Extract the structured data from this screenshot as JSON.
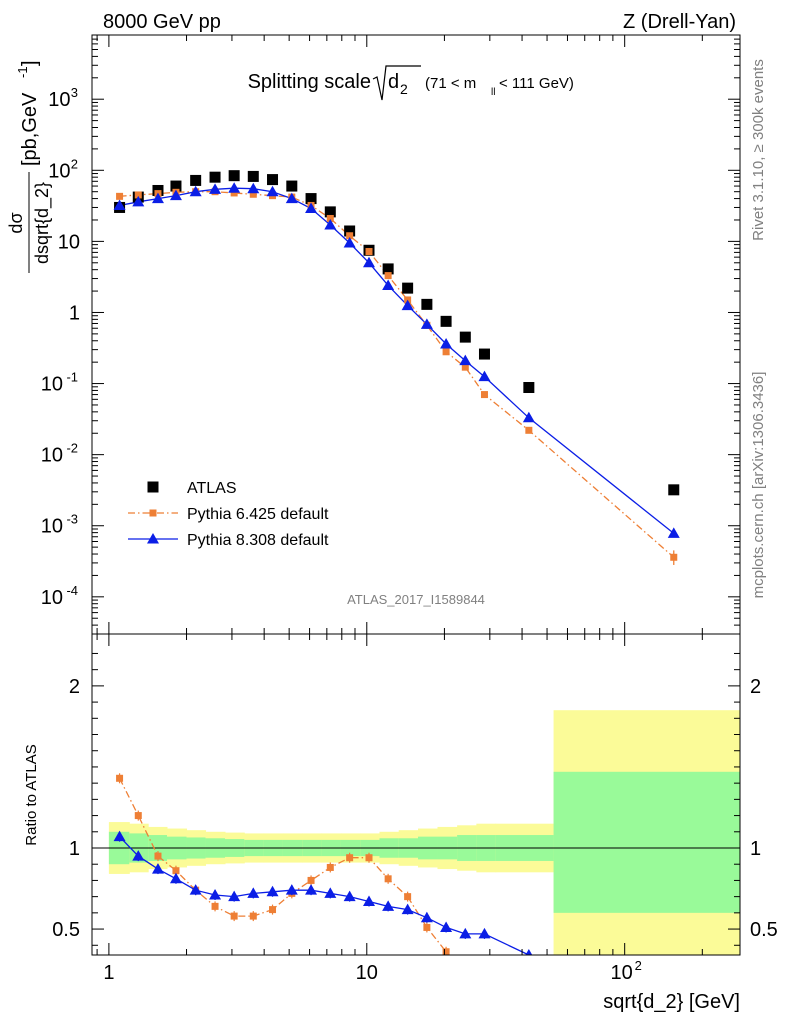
{
  "header": {
    "left": "8000 GeV pp",
    "right": "Z (Drell-Yan)"
  },
  "side_text": {
    "rivet": "Rivet 3.1.10, ≥ 300k events",
    "mcplots": "mcplots.cern.ch [arXiv:1306.3436]"
  },
  "plot_title": {
    "main": "Splitting scale",
    "sqrt_arg": "d",
    "sqrt_sub": "2",
    "range": "(71 < m",
    "range_sub": "ll",
    "range_end": " < 111 GeV)"
  },
  "analysis_id": "ATLAS_2017_I1589844",
  "chart_data": [
    {
      "type": "scatter",
      "panel": "main",
      "xlabel": "sqrt{d_2} [GeV]",
      "ylabel_num": "dσ",
      "ylabel_den": "dsqrt{d_2}",
      "ylabel_unit": "[pb,GeV",
      "ylabel_unit_sup": "-1",
      "yscale": "log",
      "xscale": "log",
      "xlim": [
        0.86,
        280
      ],
      "ylim": [
        3e-05,
        8000
      ],
      "y_ticks": [
        {
          "v": 0.0001,
          "base": "10",
          "exp": "-4"
        },
        {
          "v": 0.001,
          "base": "10",
          "exp": "-3"
        },
        {
          "v": 0.01,
          "base": "10",
          "exp": "-2"
        },
        {
          "v": 0.1,
          "base": "10",
          "exp": "-1"
        },
        {
          "v": 1,
          "base": "1",
          "exp": ""
        },
        {
          "v": 10,
          "base": "10",
          "exp": ""
        },
        {
          "v": 100,
          "base": "10",
          "exp": "2"
        },
        {
          "v": 1000,
          "base": "10",
          "exp": "3"
        }
      ],
      "legend_position": "lower-left",
      "series": [
        {
          "name": "ATLAS",
          "style": "data",
          "color": "#000000",
          "x": [
            1.1,
            1.3,
            1.55,
            1.82,
            2.17,
            2.58,
            3.06,
            3.63,
            4.31,
            5.12,
            6.08,
            7.22,
            8.58,
            10.2,
            12.1,
            14.4,
            17.1,
            20.3,
            24.1,
            28.6,
            42.5,
            155
          ],
          "y": [
            30,
            42,
            52,
            60,
            72,
            80,
            84,
            82,
            74,
            60,
            40,
            26,
            14,
            7.5,
            4.1,
            2.2,
            1.3,
            0.75,
            0.45,
            0.26,
            0.088,
            0.0032
          ]
        },
        {
          "name": "Pythia 6.425 default",
          "style": "dashdot-square",
          "color": "#ee7f35",
          "x": [
            1.1,
            1.3,
            1.55,
            1.82,
            2.17,
            2.58,
            3.06,
            3.63,
            4.31,
            5.12,
            6.08,
            7.22,
            8.58,
            10.2,
            12.1,
            14.4,
            17.1,
            20.3,
            24.1,
            28.6,
            42.5,
            155
          ],
          "y": [
            43,
            45,
            47,
            49,
            50,
            50,
            48,
            46,
            44,
            42,
            32,
            21,
            12,
            7.2,
            3.3,
            1.5,
            0.66,
            0.28,
            0.17,
            0.07,
            0.022,
            0.00036
          ]
        },
        {
          "name": "Pythia 8.308 default",
          "style": "solid-triangle",
          "color": "#0b1ee6",
          "x": [
            1.1,
            1.3,
            1.55,
            1.82,
            2.17,
            2.58,
            3.06,
            3.63,
            4.31,
            5.12,
            6.08,
            7.22,
            8.58,
            10.2,
            12.1,
            14.4,
            17.1,
            20.3,
            24.1,
            28.6,
            42.5,
            155
          ],
          "y": [
            32,
            36,
            40,
            44,
            50,
            54,
            56,
            55,
            50,
            40,
            29,
            17,
            9.5,
            5.0,
            2.4,
            1.25,
            0.68,
            0.36,
            0.21,
            0.125,
            0.033,
            0.00078
          ]
        }
      ]
    },
    {
      "type": "line",
      "panel": "ratio",
      "ylabel": "Ratio to ATLAS",
      "xlabel": "sqrt{d_2} [GeV]",
      "xscale": "log",
      "xlim": [
        0.86,
        280
      ],
      "ylim": [
        0.34,
        2.32
      ],
      "x_ticks": [
        {
          "v": 1,
          "base": "1",
          "exp": ""
        },
        {
          "v": 10,
          "base": "10",
          "exp": ""
        },
        {
          "v": 100,
          "base": "10",
          "exp": "2"
        }
      ],
      "y_ticks": [
        0.5,
        1,
        2
      ],
      "band_edges": [
        1.0,
        1.2,
        1.42,
        1.68,
        2.0,
        2.37,
        2.82,
        3.35,
        3.98,
        4.73,
        5.62,
        6.68,
        7.94,
        9.44,
        11.2,
        13.3,
        15.8,
        18.8,
        22.4,
        26.6,
        31.6,
        53.0,
        280
      ],
      "band_stat_low": [
        0.9,
        0.91,
        0.92,
        0.93,
        0.935,
        0.94,
        0.945,
        0.95,
        0.95,
        0.95,
        0.95,
        0.95,
        0.95,
        0.95,
        0.94,
        0.94,
        0.93,
        0.93,
        0.92,
        0.92,
        0.92,
        0.6
      ],
      "band_stat_high": [
        1.1,
        1.09,
        1.08,
        1.07,
        1.065,
        1.06,
        1.055,
        1.05,
        1.05,
        1.05,
        1.05,
        1.05,
        1.05,
        1.05,
        1.06,
        1.06,
        1.07,
        1.07,
        1.08,
        1.08,
        1.08,
        1.47
      ],
      "band_tot_low": [
        0.84,
        0.85,
        0.87,
        0.88,
        0.89,
        0.9,
        0.905,
        0.91,
        0.91,
        0.91,
        0.91,
        0.91,
        0.91,
        0.91,
        0.9,
        0.89,
        0.88,
        0.87,
        0.86,
        0.85,
        0.85,
        0.34
      ],
      "band_tot_high": [
        1.16,
        1.15,
        1.13,
        1.12,
        1.11,
        1.1,
        1.095,
        1.09,
        1.09,
        1.09,
        1.09,
        1.09,
        1.09,
        1.09,
        1.1,
        1.11,
        1.12,
        1.13,
        1.14,
        1.15,
        1.15,
        1.85
      ],
      "band_colors": {
        "stat": "#99fa99",
        "total": "#fbfb98"
      },
      "series": [
        {
          "name": "Pythia 6.425 default",
          "color": "#ee7f35",
          "x": [
            1.1,
            1.3,
            1.55,
            1.82,
            2.17,
            2.58,
            3.06,
            3.63,
            4.31,
            5.12,
            6.08,
            7.22,
            8.58,
            10.2,
            12.1,
            14.4,
            17.1,
            20.3
          ],
          "y": [
            1.43,
            1.2,
            0.95,
            0.86,
            0.74,
            0.64,
            0.58,
            0.58,
            0.62,
            0.72,
            0.8,
            0.88,
            0.94,
            0.94,
            0.81,
            0.7,
            0.51,
            0.36
          ]
        },
        {
          "name": "Pythia 8.308 default",
          "color": "#0b1ee6",
          "x": [
            1.1,
            1.3,
            1.55,
            1.82,
            2.17,
            2.58,
            3.06,
            3.63,
            4.31,
            5.12,
            6.08,
            7.22,
            8.58,
            10.2,
            12.1,
            14.4,
            17.1,
            20.3,
            24.1,
            28.6,
            42.5
          ],
          "y": [
            1.07,
            0.95,
            0.87,
            0.81,
            0.74,
            0.71,
            0.7,
            0.72,
            0.73,
            0.74,
            0.74,
            0.72,
            0.7,
            0.67,
            0.64,
            0.62,
            0.57,
            0.51,
            0.47,
            0.47,
            0.34
          ]
        }
      ]
    }
  ]
}
